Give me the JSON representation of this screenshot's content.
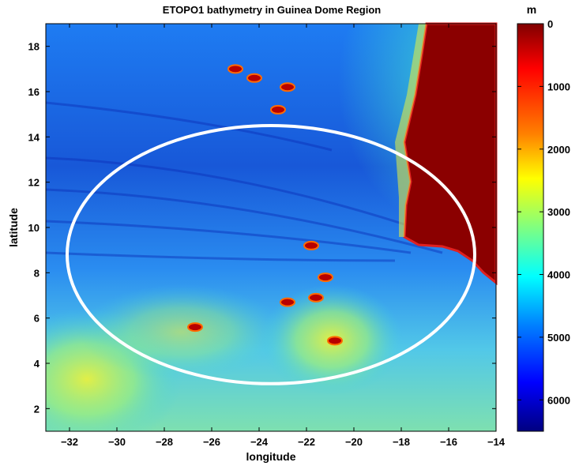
{
  "chart_data": {
    "type": "heatmap",
    "title": "ETOPO1 bathymetry in Guinea Dome Region",
    "xlabel": "longitude",
    "ylabel": "latitude",
    "xlim": [
      -33,
      -14
    ],
    "ylim": [
      1,
      19
    ],
    "x_ticks": [
      -32,
      -30,
      -28,
      -26,
      -24,
      -22,
      -20,
      -18,
      -16,
      -14
    ],
    "x_tick_labels": [
      "−32",
      "−30",
      "−28",
      "−26",
      "−24",
      "−22",
      "−20",
      "−18",
      "−16",
      "−14"
    ],
    "y_ticks": [
      2,
      4,
      6,
      8,
      10,
      12,
      14,
      16,
      18
    ],
    "y_tick_labels": [
      "2",
      "4",
      "6",
      "8",
      "10",
      "12",
      "14",
      "16",
      "18"
    ],
    "colorbar": {
      "unit": "m",
      "range": [
        0,
        6500
      ],
      "ticks": [
        0,
        1000,
        2000,
        3000,
        4000,
        5000,
        6000
      ],
      "tick_labels": [
        "0",
        "1000",
        "2000",
        "3000",
        "4000",
        "5000",
        "6000"
      ],
      "colormap": "jet (reversed: 0 m dark red at top, deep blue at bottom)"
    },
    "highlight_ellipse": {
      "center": [
        -23.5,
        8.8
      ],
      "half_width_deg": 8.6,
      "half_height_deg": 5.7,
      "color": "#ffffff"
    },
    "land_region": "coast east of about -17.5 longitude, north of about 8.5 latitude",
    "seamounts": [
      {
        "lon": -25.0,
        "lat": 17.0
      },
      {
        "lon": -24.2,
        "lat": 16.6
      },
      {
        "lon": -22.8,
        "lat": 16.2
      },
      {
        "lon": -23.2,
        "lat": 15.2
      },
      {
        "lon": -21.8,
        "lat": 9.2
      },
      {
        "lon": -21.2,
        "lat": 7.8
      },
      {
        "lon": -21.6,
        "lat": 6.9
      },
      {
        "lon": -22.8,
        "lat": 6.7
      },
      {
        "lon": -20.8,
        "lat": 5.0
      },
      {
        "lon": -26.7,
        "lat": 5.6
      }
    ]
  }
}
